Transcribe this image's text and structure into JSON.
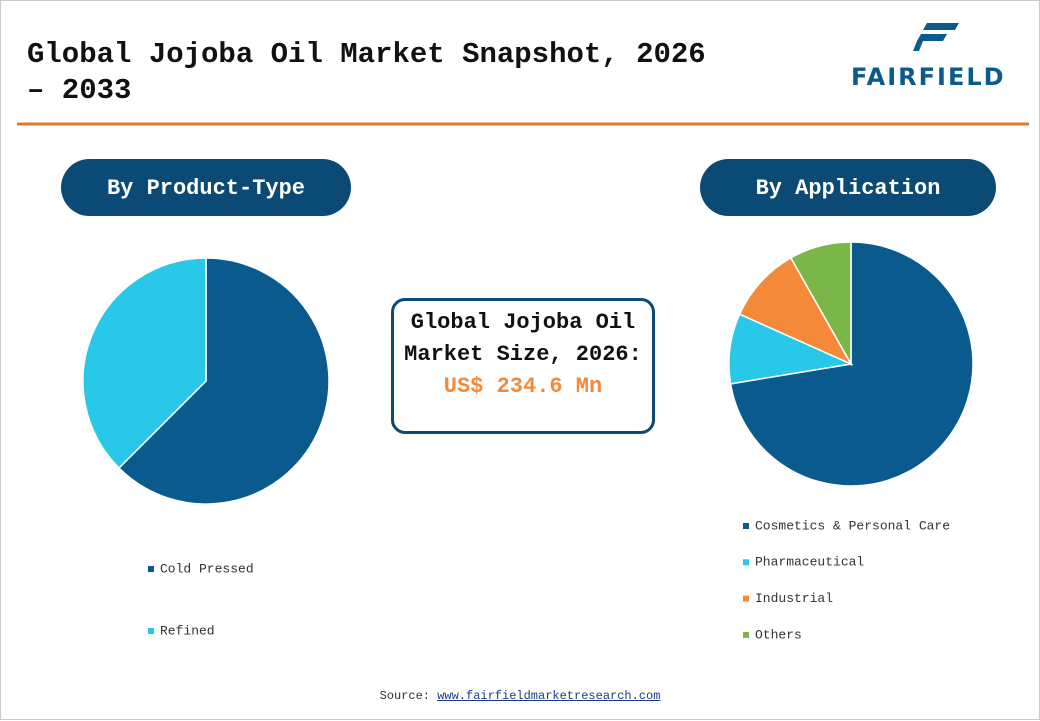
{
  "header": {
    "title": "Global Jojoba Oil Market Snapshot, 2026 – 2033",
    "logo": "FAIRFIELD"
  },
  "chart_data": [
    {
      "type": "pie",
      "title": "By Product-Type",
      "categories": [
        "Cold Pressed",
        "Refined"
      ],
      "values": [
        62.5,
        37.5
      ],
      "colors": [
        "#0b5a8e",
        "#29c8e8"
      ]
    },
    {
      "type": "pie",
      "title": "By Application",
      "categories": [
        "Cosmetics & Personal Care",
        "Pharmaceutical",
        "Industrial",
        "Others"
      ],
      "values": [
        72.4,
        9.3,
        10.1,
        8.2
      ],
      "colors": [
        "#0b5a8e",
        "#29c8e8",
        "#f5893a",
        "#7ab648"
      ]
    }
  ],
  "center_box": {
    "label": "Global Jojoba Oil Market Size, 2026:",
    "value": "US$ 234.6 Mn"
  },
  "source": {
    "label": "Source:",
    "url": "www.fairfieldmarketresearch.com"
  }
}
